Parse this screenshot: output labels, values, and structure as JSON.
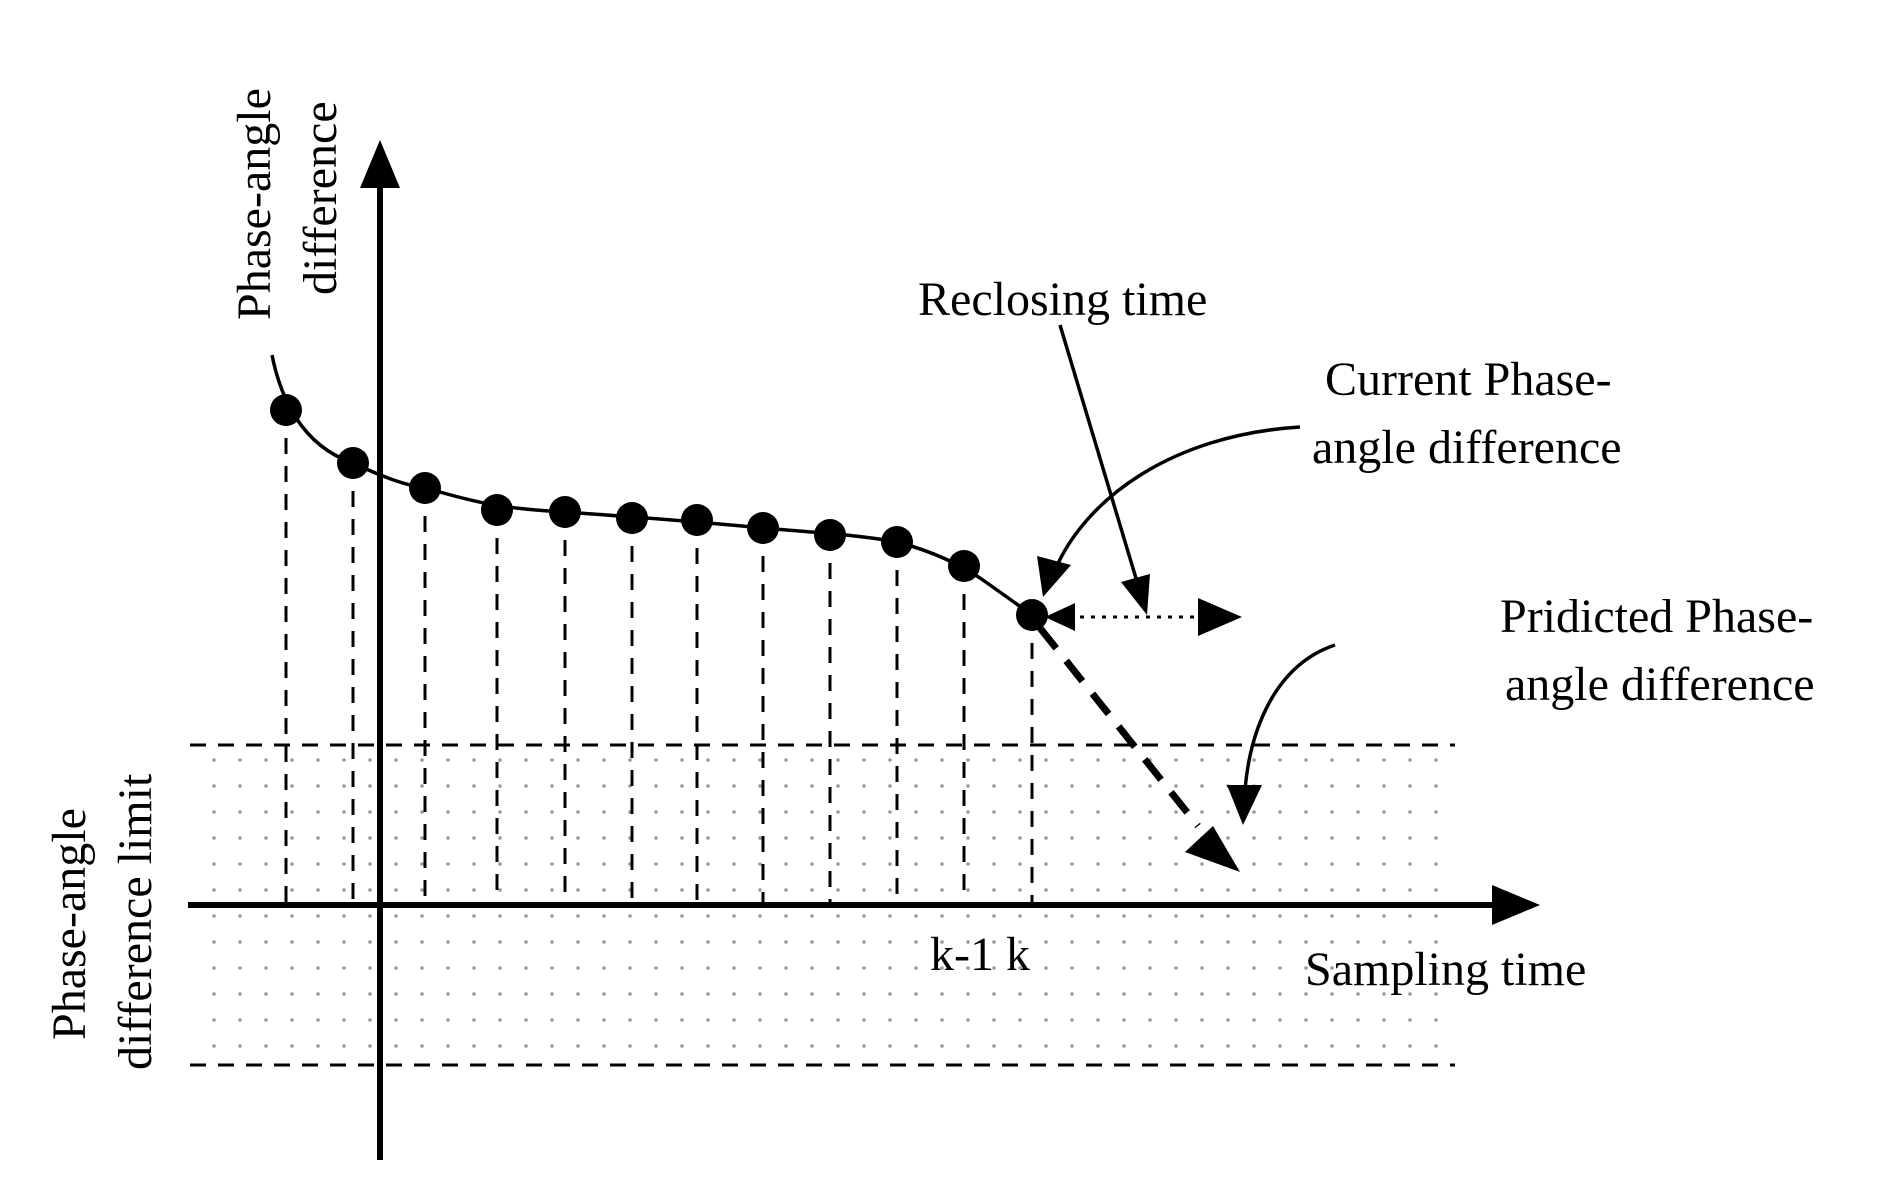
{
  "diagram": {
    "y_axis_label_line1": "Phase-angle",
    "y_axis_label_line2": "difference",
    "limit_label_line1": "Phase-angle",
    "limit_label_line2": "difference limit",
    "x_axis_label": "Sampling time",
    "tick_labels": "k-1 k",
    "reclosing_label": "Reclosing time",
    "current_label_line1": "Current Phase-",
    "current_label_line2": "angle difference",
    "predicted_label_line1": "Pridicted Phase-",
    "predicted_label_line2": "angle difference"
  },
  "colors": {
    "ink": "#000000",
    "band_dots": "#9a9a9a",
    "background": "#ffffff"
  }
}
